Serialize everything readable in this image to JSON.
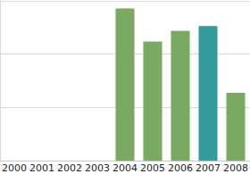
{
  "chart_data": {
    "type": "bar",
    "categories": [
      "2000",
      "2001",
      "2002",
      "2003",
      "2004",
      "2005",
      "2006",
      "2007",
      "2008"
    ],
    "values": [
      null,
      null,
      null,
      null,
      2.85,
      2.23,
      2.43,
      2.52,
      1.27
    ],
    "colors": [
      "#7aaa62",
      "#7aaa62",
      "#7aaa62",
      "#7aaa62",
      "#7aaa62",
      "#7aaa62",
      "#7aaa62",
      "#339c9a",
      "#7aaa62"
    ],
    "ylim": [
      0,
      3
    ],
    "yticks": [
      0,
      1,
      2,
      3
    ],
    "grid": true,
    "tick_labels": "x"
  }
}
